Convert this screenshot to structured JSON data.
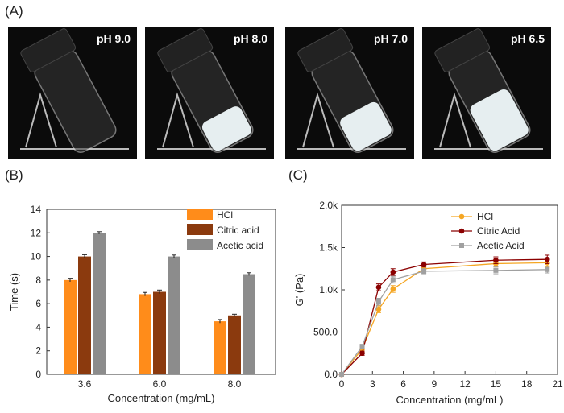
{
  "panels": {
    "a_label": "(A)",
    "b_label": "(B)",
    "c_label": "(C)"
  },
  "photos": [
    {
      "label": "pH 9.0",
      "gel_fill": 0.0
    },
    {
      "label": "pH 8.0",
      "gel_fill": 0.35
    },
    {
      "label": "pH 7.0",
      "gel_fill": 0.4
    },
    {
      "label": "pH 6.5",
      "gel_fill": 0.55
    }
  ],
  "colors": {
    "hcl": "#ff8c1a",
    "citric": "#8b3a0e",
    "acetic": "#8c8c8c",
    "line_hcl": "#f5a623",
    "line_citric": "#8b0000",
    "line_acetic": "#a0a0a0"
  },
  "chart_data": [
    {
      "type": "bar",
      "xlabel": "Concentration (mg/mL)",
      "ylabel": "Time (s)",
      "ylim": [
        0,
        14
      ],
      "yticks": [
        "0",
        "2",
        "4",
        "6",
        "8",
        "10",
        "12",
        "14"
      ],
      "categories": [
        "3.6",
        "6.0",
        "8.0"
      ],
      "legend_position": "top-right",
      "series": [
        {
          "name": "HCl",
          "values": [
            8.0,
            6.8,
            4.5
          ],
          "errors": [
            0.15,
            0.15,
            0.15
          ]
        },
        {
          "name": "Citric acid",
          "values": [
            10.0,
            7.0,
            5.0
          ],
          "errors": [
            0.15,
            0.15,
            0.1
          ]
        },
        {
          "name": "Acetic acid",
          "values": [
            12.0,
            10.0,
            8.5
          ],
          "errors": [
            0.1,
            0.12,
            0.12
          ]
        }
      ]
    },
    {
      "type": "line",
      "xlabel": "Concentration (mg/mL)",
      "ylabel": "G' (Pa)",
      "xlim": [
        0,
        21
      ],
      "ylim": [
        0,
        2000
      ],
      "xticks": [
        "0",
        "3",
        "6",
        "9",
        "12",
        "15",
        "18",
        "21"
      ],
      "yticks": [
        "0.0",
        "500.0",
        "1.0k",
        "1.5k",
        "2.0k"
      ],
      "legend_position": "top-right",
      "series": [
        {
          "name": "HCl",
          "x": [
            0,
            2,
            3.6,
            5,
            8,
            15,
            20
          ],
          "y": [
            0,
            300,
            770,
            1010,
            1250,
            1310,
            1320
          ],
          "err": [
            0,
            30,
            40,
            40,
            30,
            40,
            50
          ]
        },
        {
          "name": "Citric Acid",
          "x": [
            0,
            2,
            3.6,
            5,
            8,
            15,
            20
          ],
          "y": [
            0,
            250,
            1030,
            1210,
            1300,
            1350,
            1360
          ],
          "err": [
            0,
            25,
            40,
            40,
            30,
            40,
            50
          ]
        },
        {
          "name": "Acetic Acid",
          "x": [
            0,
            2,
            3.6,
            5,
            8,
            15,
            20
          ],
          "y": [
            0,
            330,
            860,
            1120,
            1220,
            1230,
            1240
          ],
          "err": [
            0,
            25,
            40,
            40,
            30,
            40,
            40
          ]
        }
      ]
    }
  ]
}
